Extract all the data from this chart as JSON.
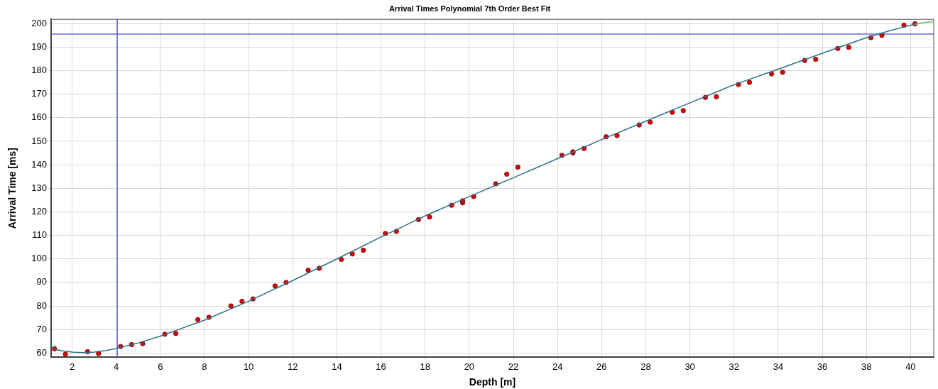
{
  "chart_data": {
    "type": "scatter",
    "title": "Arrival Times Polynomial 7th Order Best Fit",
    "xlabel": "Depth [m]",
    "ylabel": "Arrival Time [ms]",
    "xlim": [
      1.05,
      41.05
    ],
    "xticks": [
      2,
      4,
      6,
      8,
      10,
      12,
      14,
      16,
      18,
      20,
      22,
      24,
      26,
      28,
      30,
      32,
      34,
      36,
      38,
      40
    ],
    "ylim": [
      58.3,
      201.8
    ],
    "yticks": [
      60,
      70,
      80,
      90,
      100,
      110,
      120,
      130,
      140,
      150,
      160,
      170,
      180,
      190,
      200
    ],
    "grid": true,
    "legend": false,
    "ref_lines": [
      {
        "axis": "x",
        "value": 4.05,
        "color": "#6a6ad8"
      },
      {
        "axis": "y",
        "value": 195.5,
        "color": "#6a6ad8"
      }
    ],
    "series": [
      {
        "type": "line",
        "color": "#2e6e8e",
        "marker": "none",
        "line_style": "solid",
        "x": [
          1.1,
          1.5,
          2,
          2.5,
          3,
          3.5,
          4,
          5,
          6,
          8,
          10,
          12,
          14,
          16,
          18,
          20,
          22,
          24,
          26,
          28,
          30,
          32,
          34,
          36,
          38,
          39,
          40,
          40.2
        ],
        "values": [
          61.8,
          61,
          60.4,
          60.2,
          60.4,
          61,
          61.9,
          64.3,
          67.2,
          74,
          82,
          90.8,
          100,
          109.3,
          118.3,
          126.5,
          134.5,
          142.6,
          150.7,
          158.5,
          166.3,
          174,
          180.6,
          187.4,
          194,
          196.8,
          199.3,
          199.7
        ]
      },
      {
        "type": "line",
        "color": "#6fbf6f",
        "marker": "none",
        "line_style": "solid",
        "x": [
          40.2,
          40.6,
          41
        ],
        "values": [
          199.7,
          200.4,
          200.8
        ]
      },
      {
        "type": "scatter",
        "color": "#e00000",
        "marker": "circle",
        "x": [
          1.2,
          1.7,
          2.7,
          3.2,
          4.2,
          4.7,
          5.2,
          6.2,
          6.7,
          7.7,
          8.2,
          9.2,
          9.7,
          10.2,
          11.2,
          11.7,
          12.7,
          13.2,
          14.2,
          14.7,
          15.2,
          16.2,
          16.7,
          17.7,
          18.2,
          19.2,
          19.7,
          19.7,
          20.2,
          21.2,
          21.7,
          22.2,
          24.2,
          24.7,
          24.7,
          25.2,
          26.2,
          26.7,
          27.7,
          28.2,
          29.2,
          29.7,
          30.7,
          31.2,
          32.2,
          32.7,
          33.7,
          34.2,
          35.2,
          35.7,
          36.7,
          37.2,
          38.2,
          38.7,
          39.7,
          40.2
        ],
        "values": [
          61.8,
          59.5,
          60.6,
          59.8,
          62.8,
          63.6,
          64,
          68,
          68.3,
          74.2,
          75.2,
          80,
          82,
          83,
          88.5,
          90,
          95.2,
          96,
          99.8,
          102.1,
          103.7,
          110.8,
          111.7,
          116.7,
          117.8,
          122.8,
          123.8,
          124.7,
          126.5,
          131.9,
          136,
          139,
          144,
          145,
          145.5,
          146.9,
          151.9,
          152.4,
          156.9,
          158.1,
          162.3,
          163,
          168.6,
          168.9,
          174.1,
          175,
          178.6,
          179.3,
          184.3,
          184.8,
          189.4,
          189.9,
          194,
          195,
          199.3,
          199.9
        ]
      }
    ]
  }
}
